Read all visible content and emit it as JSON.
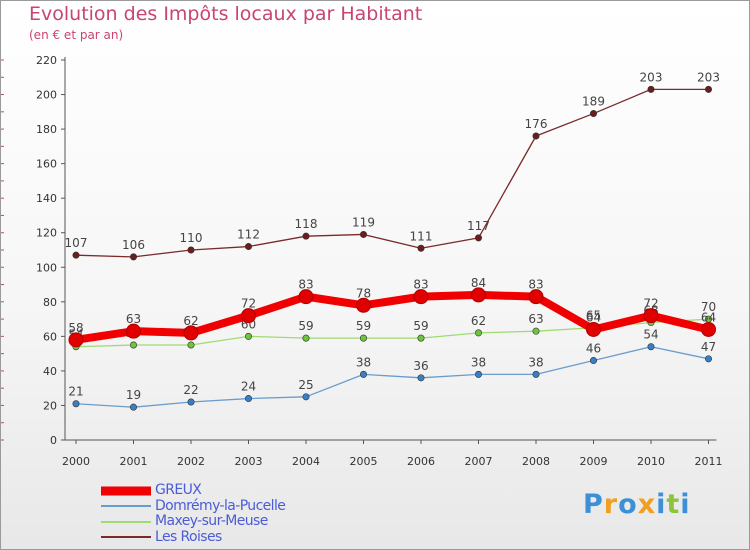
{
  "header": {
    "title": "Evolution des Impôts locaux par Habitant",
    "subtitle": "(en € et par an)"
  },
  "legend": {
    "items": [
      "GREUX",
      "Domrémy-la-Pucelle",
      "Maxey-sur-Meuse",
      "Les Roises"
    ]
  },
  "logo": {
    "text": "Proxiti",
    "letter_colors": [
      "#3d8fd6",
      "#f0a020",
      "#3d8fd6",
      "#f0a020",
      "#3d8fd6",
      "#8cc43c",
      "#3d8fd6"
    ]
  },
  "chart_data": {
    "type": "line",
    "title": "Evolution des Impôts locaux par Habitant",
    "subtitle": "(en € et par an)",
    "x": [
      "2000",
      "2001",
      "2002",
      "2003",
      "2004",
      "2005",
      "2006",
      "2007",
      "2008",
      "2009",
      "2010",
      "2011"
    ],
    "ylim": [
      0,
      220
    ],
    "yticks": [
      0,
      20,
      40,
      60,
      80,
      100,
      120,
      140,
      160,
      180,
      200,
      220
    ],
    "grid": false,
    "legend_position": "bottom-left",
    "series": [
      {
        "name": "Les Roises",
        "color": "#7a2a2a",
        "marker_color": "#6b1c1c",
        "line_width": "thin",
        "values": [
          107,
          106,
          110,
          112,
          118,
          119,
          111,
          117,
          176,
          189,
          203,
          203
        ]
      },
      {
        "name": "Domrémy-la-Pucelle",
        "color": "#6a9ccc",
        "marker_color": "#3a7fc4",
        "line_width": "thin",
        "values": [
          21,
          19,
          22,
          24,
          25,
          38,
          36,
          38,
          38,
          46,
          54,
          47
        ]
      },
      {
        "name": "Maxey-sur-Meuse",
        "color": "#9edc72",
        "marker_color": "#6cc63c",
        "line_width": "thin",
        "values": [
          54,
          55,
          55,
          60,
          59,
          59,
          59,
          62,
          63,
          65,
          68,
          70
        ]
      },
      {
        "name": "GREUX",
        "color": "#f00000",
        "marker_color": "#e00000",
        "line_width": "thick",
        "values": [
          58,
          63,
          62,
          72,
          83,
          78,
          83,
          84,
          83,
          64,
          72,
          64
        ]
      }
    ]
  }
}
